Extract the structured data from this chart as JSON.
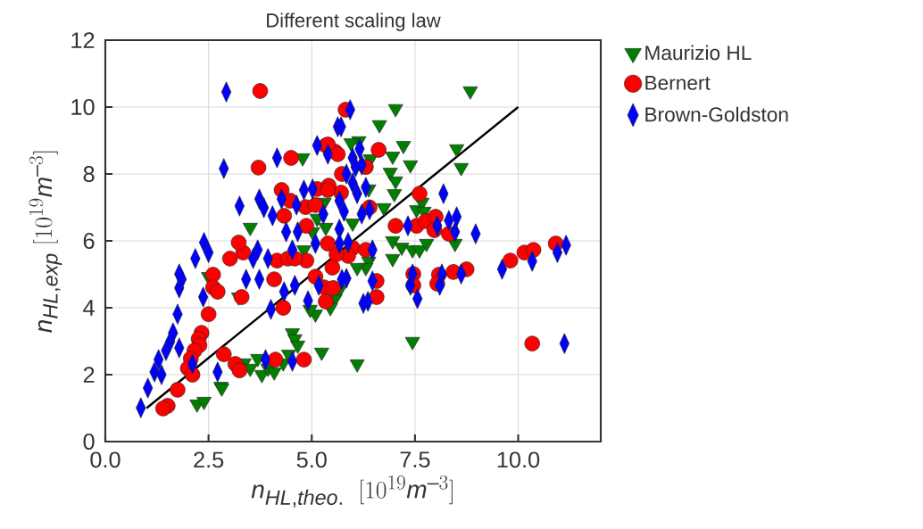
{
  "chart_data": {
    "type": "scatter",
    "title": "Different scaling law",
    "xlabel": "n_{HL,theo.}\\ \\ [10^{19}m^{-3}]",
    "ylabel": "n_{HL,exp}\\ [10^{19}m^{-3}]",
    "xlim": [
      0,
      12
    ],
    "ylim": [
      0,
      12
    ],
    "xticks": [
      {
        "value": 0,
        "label": "0.0"
      },
      2.5,
      {
        "value": 5,
        "label": "5.0"
      },
      7.5,
      {
        "value": 10,
        "label": "10.0"
      }
    ],
    "yticks": [
      0,
      2,
      4,
      6,
      8,
      10,
      12
    ],
    "grid": true,
    "legend": "right",
    "series": [
      {
        "name": "Maurizio HL",
        "color": "#008000",
        "marker": "triangle",
        "x": [
          8.84,
          7.03,
          6.64,
          6.14,
          7.22,
          8.51,
          4.78,
          6.42,
          5.95,
          8.62,
          6.96,
          7.39,
          6.9,
          7.03,
          7.0,
          6.75,
          7.54,
          7.67,
          7.72,
          6.38,
          3.51,
          5.3,
          5.24,
          5.13,
          5.34,
          5.02,
          6.96,
          7.18,
          6.96,
          7.44,
          7.61,
          7.78,
          8.47,
          6.38,
          6.31,
          6.1,
          5.67,
          5.56,
          5.45,
          5.09,
          4.96,
          2.5,
          3.23,
          2.22,
          2.39,
          2.8,
          3.36,
          3.51,
          3.79,
          3.94,
          4.09,
          4.31,
          4.44,
          4.53,
          4.59,
          4.66,
          5.24,
          3.69,
          7.44,
          6.1,
          2.82,
          4.81,
          5.99,
          4.05
        ],
        "values": [
          10.48,
          9.95,
          9.47,
          8.99,
          8.85,
          8.75,
          8.48,
          8.45,
          8.93,
          8.19,
          8.53,
          8.27,
          8.05,
          7.79,
          7.41,
          6.99,
          6.93,
          7.15,
          6.88,
          7.55,
          6.4,
          7.15,
          7.07,
          6.67,
          6.4,
          6.27,
          6.0,
          5.81,
          5.47,
          5.73,
          5.73,
          5.92,
          5.92,
          5.39,
          5.2,
          5.2,
          4.53,
          4.27,
          4.0,
          3.81,
          3.95,
          4.93,
          4.32,
          1.12,
          1.2,
          1.65,
          2.35,
          2.19,
          2.0,
          2.19,
          2.08,
          2.35,
          2.61,
          3.25,
          3.07,
          2.88,
          2.67,
          2.48,
          2.99,
          2.32,
          1.6,
          5.73,
          6.53,
          2.4
        ]
      },
      {
        "name": "Bernert",
        "color": "#ff0000",
        "marker": "circle",
        "x": [
          3.75,
          3.71,
          4.5,
          5.34,
          5.56,
          5.73,
          4.27,
          4.48,
          5.13,
          5.41,
          5.71,
          6.62,
          7.61,
          7.03,
          7.54,
          7.76,
          8.0,
          7.97,
          8.32,
          5.99,
          6.31,
          5.88,
          9.81,
          10.15,
          10.37,
          10.91,
          10.34,
          6.57,
          6.57,
          7.46,
          7.46,
          8.08,
          8.04,
          8.43,
          8.75,
          3.02,
          3.34,
          4.16,
          4.42,
          4.09,
          2.61,
          2.61,
          2.72,
          3.3,
          2.5,
          2.33,
          2.26,
          2.28,
          2.16,
          2.07,
          2.0,
          2.11,
          2.87,
          3.15,
          3.25,
          1.75,
          1.51,
          1.4,
          4.31,
          4.12,
          4.81,
          4.87,
          5.09,
          5.3,
          5.34,
          5.52,
          5.5,
          5.6,
          3.23,
          4.85,
          5.09,
          4.33,
          5.39,
          4.87,
          5.39,
          4.59,
          5.82,
          5.39,
          5.63,
          6.31,
          6.4
        ],
        "values": [
          10.48,
          8.19,
          8.48,
          8.85,
          8.67,
          8.0,
          7.52,
          7.2,
          7.55,
          7.65,
          7.44,
          8.72,
          7.41,
          6.45,
          6.45,
          6.59,
          6.72,
          6.32,
          6.21,
          5.79,
          5.73,
          5.55,
          5.41,
          5.65,
          5.73,
          5.92,
          2.93,
          4.8,
          4.32,
          5.01,
          4.67,
          4.99,
          4.72,
          5.07,
          5.15,
          5.47,
          5.65,
          5.41,
          5.47,
          4.85,
          4.99,
          4.61,
          4.48,
          4.32,
          3.81,
          3.25,
          3.07,
          2.88,
          2.72,
          2.48,
          2.19,
          2.0,
          2.61,
          2.32,
          2.13,
          1.55,
          1.07,
          0.99,
          4.0,
          2.45,
          2.45,
          5.41,
          4.93,
          4.61,
          4.19,
          4.59,
          5.2,
          5.6,
          5.95,
          7.01,
          7.07,
          6.75,
          7.52,
          6.45,
          5.92,
          5.47,
          9.92,
          8.88,
          8.59,
          8.21,
          7.0
        ]
      },
      {
        "name": "Brown-Goldston",
        "color": "#0000ff",
        "marker": "diamond",
        "x": [
          2.93,
          2.87,
          4.16,
          3.25,
          3.73,
          3.84,
          4.05,
          4.27,
          4.63,
          4.81,
          5.02,
          5.63,
          5.13,
          5.39,
          4.38,
          4.66,
          4.53,
          5.09,
          5.67,
          2.39,
          2.5,
          2.18,
          3.69,
          3.58,
          3.94,
          5.93,
          6.21,
          6.31,
          6.4,
          5.67,
          5.28,
          5.88,
          5.71,
          6.16,
          5.99,
          6.06,
          5.84,
          5.99,
          6.1,
          6.21,
          5.78,
          8.19,
          7.33,
          8.04,
          8.32,
          8.51,
          8.47,
          8.97,
          6.47,
          5.67,
          9.61,
          10.34,
          10.95,
          11.16,
          11.12,
          8.15,
          8.1,
          8.62,
          7.44,
          7.39,
          7.56,
          6.47,
          6.36,
          6.25,
          5.84,
          0.86,
          1.03,
          1.19,
          1.36,
          1.29,
          1.47,
          1.57,
          1.64,
          1.79,
          1.75,
          1.79,
          1.85,
          1.79,
          2.37,
          2.72,
          2.11,
          3.41,
          3.73,
          4.01,
          4.33,
          4.59,
          3.88,
          4.53,
          4.91,
          5.17,
          5.73
        ],
        "values": [
          10.45,
          8.16,
          8.48,
          7.04,
          7.25,
          6.99,
          6.75,
          7.25,
          7.07,
          7.52,
          7.55,
          9.41,
          8.85,
          8.59,
          6.27,
          6.27,
          5.73,
          5.92,
          6.35,
          5.95,
          5.65,
          5.47,
          5.73,
          5.47,
          5.47,
          9.92,
          8.27,
          7.6,
          6.93,
          7.2,
          6.8,
          5.95,
          9.41,
          8.75,
          8.48,
          8.21,
          8.0,
          7.73,
          7.41,
          6.8,
          6.88,
          7.41,
          6.45,
          6.45,
          6.61,
          6.72,
          6.27,
          6.21,
          5.73,
          5.92,
          5.15,
          5.39,
          5.65,
          5.87,
          2.93,
          5.01,
          4.67,
          5.01,
          5.01,
          4.67,
          4.27,
          4.8,
          4.19,
          4.13,
          4.88,
          1.01,
          1.6,
          2.08,
          2.0,
          2.45,
          2.72,
          2.99,
          3.25,
          2.8,
          3.81,
          4.59,
          4.85,
          5.01,
          4.32,
          2.08,
          2.32,
          4.85,
          4.85,
          3.95,
          4.48,
          4.67,
          2.45,
          2.4,
          4.21,
          4.67,
          4.85
        ]
      },
      {
        "type": "line",
        "color": "#000000",
        "marker": "none",
        "line_style": "solid",
        "x": [
          1,
          10
        ],
        "values": [
          1,
          10
        ]
      }
    ]
  }
}
